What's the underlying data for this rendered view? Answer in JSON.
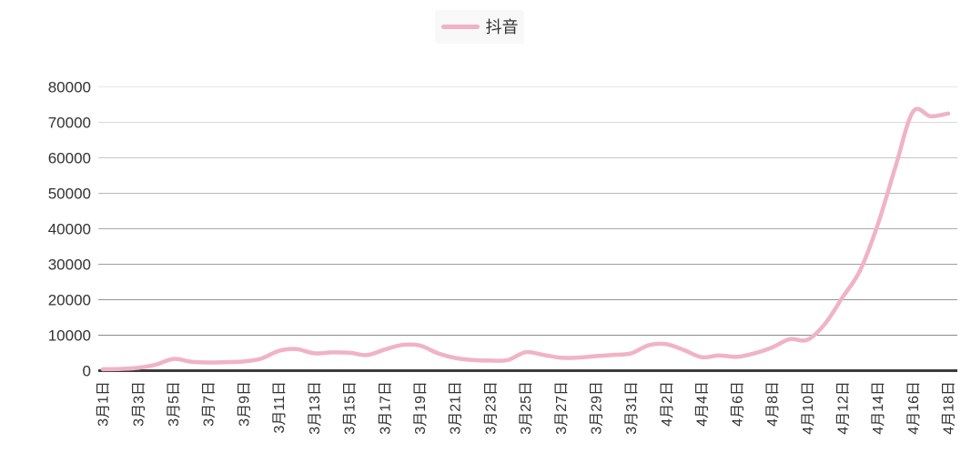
{
  "legend": {
    "label": "抖音",
    "background": "#f8f8f8"
  },
  "colors": {
    "line": "#f0b3c5",
    "axis_line": "#3c3c3c",
    "label_text": "#333333",
    "legend_text": "#333333",
    "grid_lines_top_to_bottom": [
      "#e7e7e7",
      "#d9d9d9",
      "#c6c6c6",
      "#b9b9b9",
      "#ababab",
      "#9f9f9f",
      "#949494",
      "#8a8a8a"
    ]
  },
  "chart_data": {
    "type": "line",
    "title": "",
    "xlabel": "",
    "ylabel": "",
    "smooth": true,
    "grid": true,
    "legend_position": "top-center",
    "ylim": [
      0,
      80000
    ],
    "y_ticks": [
      0,
      10000,
      20000,
      30000,
      40000,
      50000,
      60000,
      70000,
      80000
    ],
    "x_tick_every": 2,
    "x": [
      "3月1日",
      "3月2日",
      "3月3日",
      "3月4日",
      "3月5日",
      "3月6日",
      "3月7日",
      "3月8日",
      "3月9日",
      "3月10日",
      "3月11日",
      "3月12日",
      "3月13日",
      "3月14日",
      "3月15日",
      "3月16日",
      "3月17日",
      "3月18日",
      "3月19日",
      "3月20日",
      "3月21日",
      "3月22日",
      "3月23日",
      "3月24日",
      "3月25日",
      "3月26日",
      "3月27日",
      "3月28日",
      "3月29日",
      "3月30日",
      "3月31日",
      "4月1日",
      "4月2日",
      "4月3日",
      "4月4日",
      "4月5日",
      "4月6日",
      "4月7日",
      "4月8日",
      "4月9日",
      "4月10日",
      "4月11日",
      "4月12日",
      "4月13日",
      "4月14日",
      "4月15日",
      "4月16日",
      "4月17日",
      "4月18日"
    ],
    "series": [
      {
        "name": "抖音",
        "color": "#f0b3c5",
        "values": [
          400,
          500,
          800,
          1700,
          3300,
          2550,
          2300,
          2400,
          2600,
          3400,
          5600,
          6100,
          4900,
          5150,
          5050,
          4400,
          5950,
          7250,
          7100,
          4950,
          3600,
          3000,
          2850,
          3000,
          5200,
          4450,
          3650,
          3700,
          4100,
          4450,
          4900,
          7200,
          7450,
          5800,
          3800,
          4300,
          3900,
          4900,
          6550,
          8900,
          8700,
          13200,
          20700,
          28300,
          41200,
          57400,
          73000,
          71700,
          72500
        ]
      }
    ]
  }
}
